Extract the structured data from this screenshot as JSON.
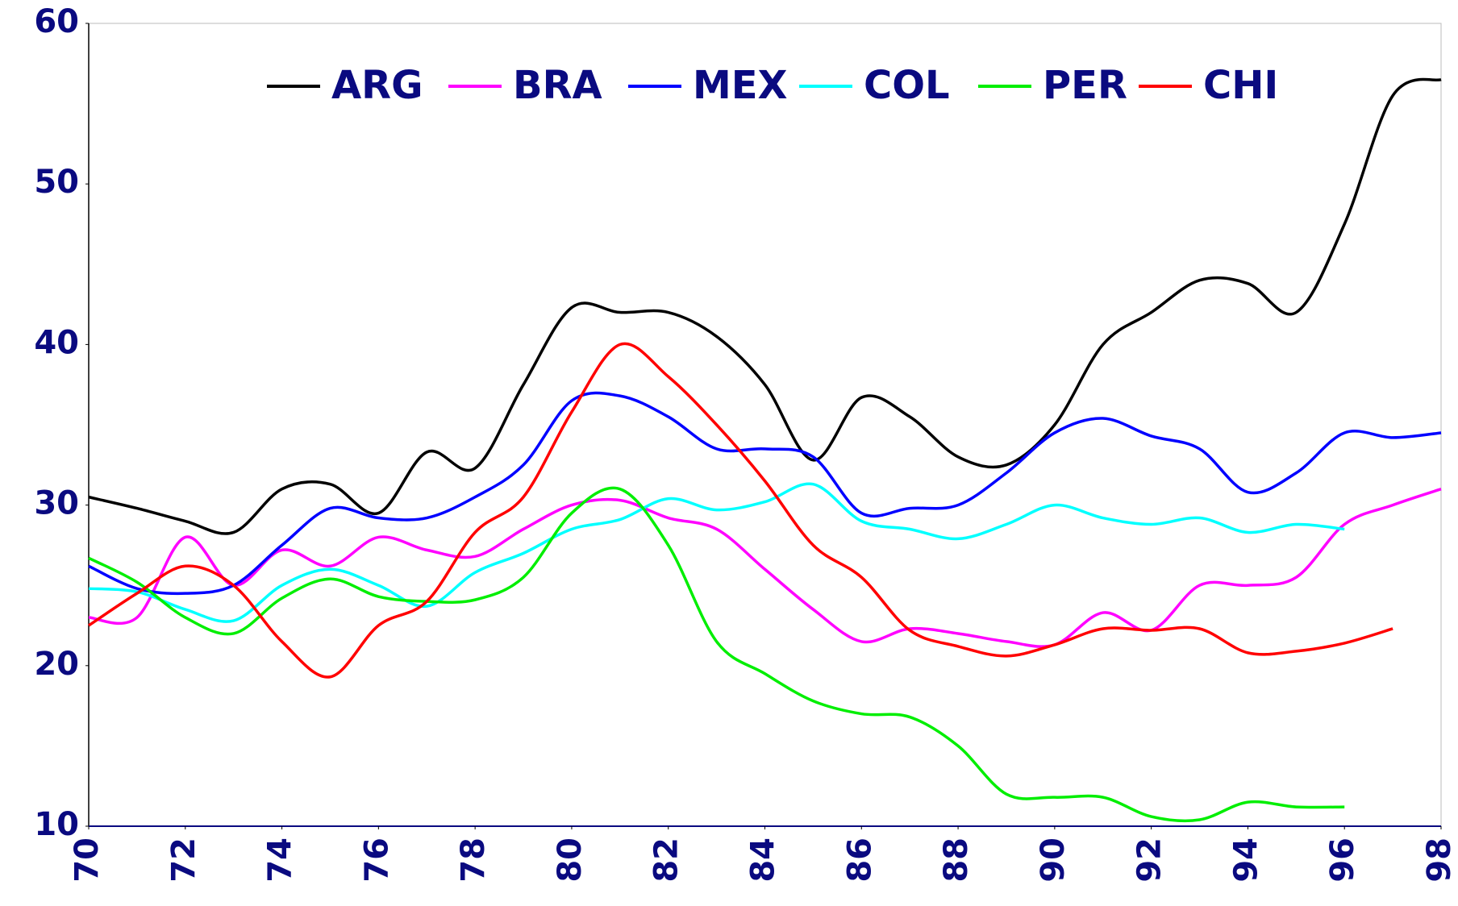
{
  "chart_data": {
    "type": "line",
    "x": [
      70,
      71,
      72,
      73,
      74,
      75,
      76,
      77,
      78,
      79,
      80,
      81,
      82,
      83,
      84,
      85,
      86,
      87,
      88,
      89,
      90,
      91,
      92,
      93,
      94,
      95,
      96,
      97,
      98
    ],
    "series": [
      {
        "name": "ARG",
        "color": "#000000",
        "values": [
          30.5,
          29.8,
          29.0,
          28.3,
          31.0,
          31.3,
          29.5,
          33.3,
          32.3,
          37.5,
          42.3,
          42.0,
          42.0,
          40.5,
          37.5,
          32.8,
          36.7,
          35.5,
          33.0,
          32.5,
          35.0,
          40.0,
          42.0,
          44.0,
          43.8,
          42.0,
          47.5,
          55.5,
          56.5
        ]
      },
      {
        "name": "BRA",
        "color": "#ff00ff",
        "values": [
          23.0,
          23.0,
          28.0,
          25.0,
          27.2,
          26.2,
          28.0,
          27.2,
          26.8,
          28.5,
          30.0,
          30.3,
          29.2,
          28.5,
          26.0,
          23.5,
          21.5,
          22.3,
          22.0,
          21.5,
          21.3,
          23.3,
          22.2,
          25.0,
          25.0,
          25.5,
          28.8,
          30.0,
          31.0
        ]
      },
      {
        "name": "MEX",
        "color": "#0000ff",
        "values": [
          26.2,
          24.8,
          24.5,
          25.0,
          27.5,
          29.8,
          29.2,
          29.2,
          30.5,
          32.5,
          36.5,
          36.8,
          35.5,
          33.5,
          33.5,
          33.0,
          29.5,
          29.8,
          30.0,
          32.0,
          34.5,
          35.4,
          34.3,
          33.5,
          30.8,
          32.0,
          34.5,
          34.2,
          34.5
        ]
      },
      {
        "name": "COL",
        "color": "#00ffff",
        "values": [
          24.8,
          24.6,
          23.5,
          22.8,
          25.0,
          26.0,
          25.0,
          23.7,
          25.8,
          27.0,
          28.5,
          29.1,
          30.4,
          29.7,
          30.2,
          31.3,
          29.0,
          28.5,
          27.9,
          28.8,
          30.0,
          29.2,
          28.8,
          29.2,
          28.3,
          28.8,
          28.5,
          null,
          null
        ]
      },
      {
        "name": "PER",
        "color": "#00ee00",
        "values": [
          26.7,
          25.2,
          23.0,
          22.0,
          24.2,
          25.4,
          24.3,
          24.0,
          24.1,
          25.5,
          29.5,
          31.0,
          27.5,
          21.5,
          19.5,
          17.8,
          17.0,
          16.8,
          15.0,
          12.0,
          11.8,
          11.8,
          10.6,
          10.4,
          11.5,
          11.2,
          11.2,
          null,
          null
        ]
      },
      {
        "name": "CHI",
        "color": "#ff0000",
        "values": [
          22.5,
          24.5,
          26.2,
          25.0,
          21.5,
          19.3,
          22.5,
          24.0,
          28.3,
          30.5,
          35.8,
          40.0,
          38.0,
          35.0,
          31.5,
          27.5,
          25.5,
          22.2,
          21.2,
          20.6,
          21.3,
          22.3,
          22.2,
          22.3,
          20.8,
          20.9,
          21.4,
          22.3,
          null
        ]
      }
    ],
    "xlim": [
      70,
      98
    ],
    "xticks": [
      70,
      72,
      74,
      76,
      78,
      80,
      82,
      84,
      86,
      88,
      90,
      92,
      94,
      96,
      98
    ],
    "ylim": [
      10,
      60
    ],
    "yticks": [
      10,
      20,
      30,
      40,
      50,
      60
    ],
    "legend": "top",
    "grid": false
  }
}
